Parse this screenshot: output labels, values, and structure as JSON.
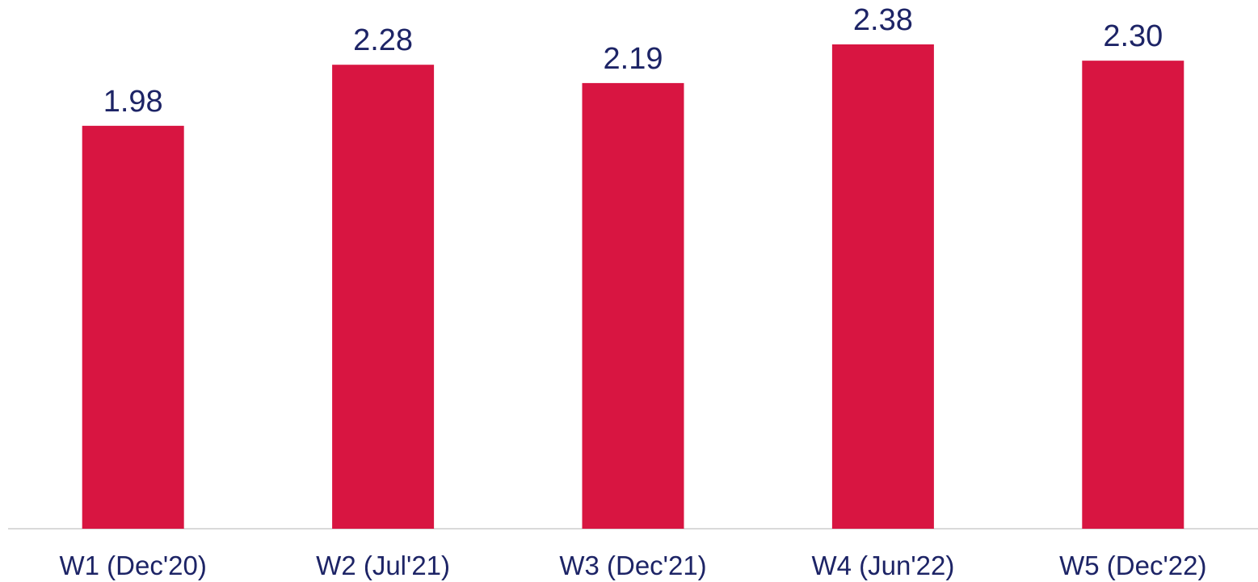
{
  "chart_data": {
    "type": "bar",
    "categories": [
      "W1 (Dec'20)",
      "W2 (Jul'21)",
      "W3 (Dec'21)",
      "W4 (Jun'22)",
      "W5 (Dec'22)"
    ],
    "series": [
      {
        "values": [
          1.98,
          2.28,
          2.19,
          2.38,
          2.3
        ]
      }
    ],
    "data_labels": [
      "1.98",
      "2.28",
      "2.19",
      "2.38",
      "2.30"
    ],
    "title": "",
    "xlabel": "",
    "ylabel": "",
    "ylim": [
      0,
      2.38
    ],
    "grid": false,
    "legend": "none",
    "colors": {
      "bar": "#d81541",
      "axis": "#d9d9d9",
      "text": "#1d2466"
    }
  }
}
